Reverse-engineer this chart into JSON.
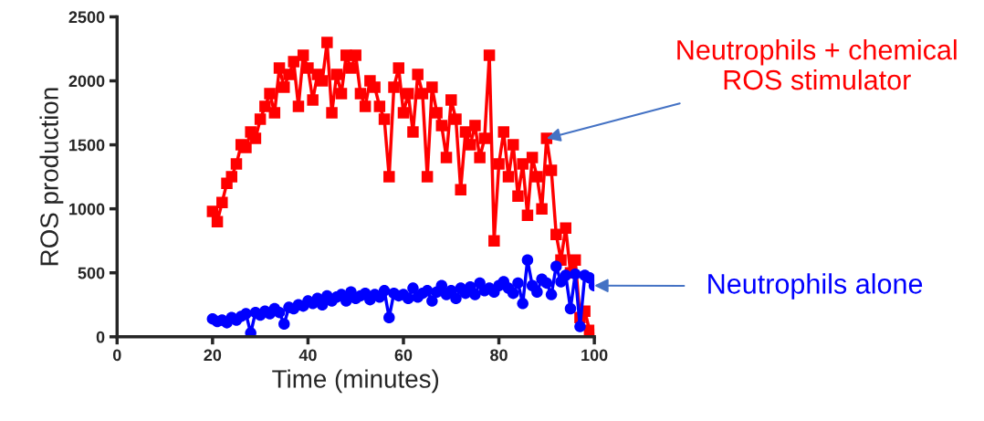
{
  "chart_data": {
    "type": "line",
    "xlabel": "Time (minutes)",
    "ylabel": "ROS production",
    "xlim": [
      0,
      100
    ],
    "xticks": [
      0,
      20,
      40,
      60,
      80,
      100
    ],
    "ylim": [
      0,
      2500
    ],
    "yticks": [
      0,
      500,
      1000,
      1500,
      2000,
      2500
    ],
    "grid": false,
    "legend": false,
    "x": [
      20,
      21,
      22,
      23,
      24,
      25,
      26,
      27,
      28,
      29,
      30,
      31,
      32,
      33,
      34,
      35,
      36,
      37,
      38,
      39,
      40,
      41,
      42,
      43,
      44,
      45,
      46,
      47,
      48,
      49,
      50,
      51,
      52,
      53,
      54,
      55,
      56,
      57,
      58,
      59,
      60,
      61,
      62,
      63,
      64,
      65,
      66,
      67,
      68,
      69,
      70,
      71,
      72,
      73,
      74,
      75,
      76,
      77,
      78,
      79,
      80,
      81,
      82,
      83,
      84,
      85,
      86,
      87,
      88,
      89,
      90,
      91,
      92,
      93,
      94,
      95,
      96,
      97,
      98,
      99,
      100
    ],
    "annotations": [
      {
        "text": "Neutrophils + chemical ROS stimulator",
        "x": 90,
        "y": 1550
      },
      {
        "text": "Neutrophils alone",
        "x": 100,
        "y": 400
      }
    ],
    "series": [
      {
        "color": "#ff0000",
        "marker": "square",
        "values": [
          980,
          900,
          1050,
          1200,
          1250,
          1350,
          1500,
          1480,
          1600,
          1550,
          1700,
          1800,
          1900,
          1750,
          2100,
          1950,
          2050,
          2150,
          1800,
          2200,
          2100,
          1850,
          2050,
          2000,
          2300,
          1750,
          2050,
          1900,
          2200,
          2100,
          2200,
          1900,
          1800,
          2000,
          1950,
          1800,
          1700,
          1250,
          1950,
          2100,
          1750,
          1900,
          1600,
          2050,
          1900,
          1250,
          1950,
          1750,
          1650,
          1400,
          1850,
          1700,
          1150,
          1600,
          1500,
          1650,
          1400,
          1550,
          2200,
          750,
          1350,
          1600,
          1250,
          1500,
          1100,
          1350,
          950,
          1400,
          1250,
          1000,
          1550,
          1300,
          800,
          600,
          850,
          500,
          600,
          150,
          200,
          50,
          20
        ]
      },
      {
        "color": "#0000ff",
        "marker": "circle",
        "values": [
          140,
          120,
          130,
          110,
          150,
          130,
          160,
          180,
          30,
          190,
          170,
          200,
          180,
          220,
          190,
          100,
          230,
          220,
          250,
          240,
          280,
          260,
          300,
          250,
          320,
          280,
          310,
          330,
          280,
          350,
          300,
          320,
          340,
          290,
          330,
          310,
          360,
          150,
          340,
          320,
          330,
          300,
          380,
          310,
          340,
          360,
          280,
          350,
          400,
          330,
          360,
          300,
          380,
          340,
          390,
          330,
          420,
          360,
          380,
          350,
          400,
          430,
          380,
          340,
          420,
          260,
          600,
          400,
          350,
          450,
          420,
          330,
          550,
          430,
          480,
          220,
          490,
          80,
          480,
          460,
          400
        ]
      }
    ]
  }
}
